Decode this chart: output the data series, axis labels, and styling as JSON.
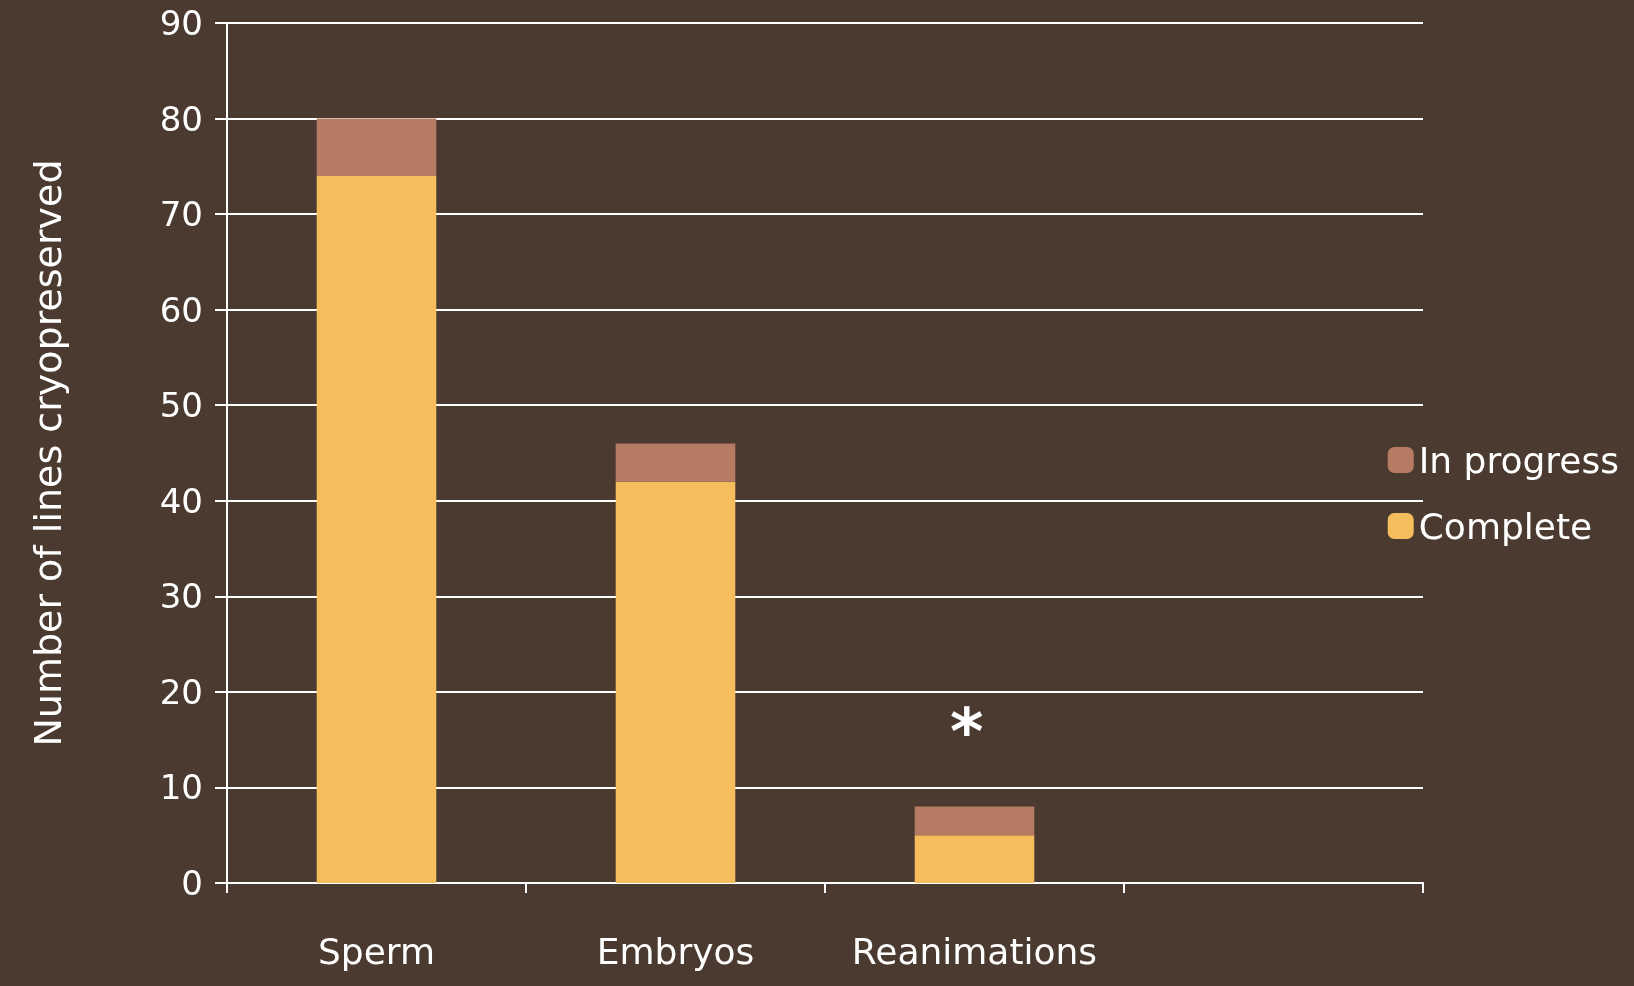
{
  "chart_data": {
    "type": "bar",
    "stacked": true,
    "ylabel": "Number of lines cryopreserved",
    "categories": [
      "Sperm",
      "Embryos",
      "Reanimations",
      null
    ],
    "series": [
      {
        "name": "Complete",
        "color": "#f5bd5c",
        "values": [
          74,
          42,
          5,
          null
        ]
      },
      {
        "name": "In progress",
        "color": "#b57b63",
        "values": [
          6,
          4,
          3,
          null
        ]
      }
    ],
    "ylim": [
      0,
      90
    ],
    "yticks": [
      0,
      10,
      20,
      30,
      40,
      50,
      60,
      70,
      80,
      90
    ],
    "grid": "y",
    "legend": "right",
    "annotations": [
      "*"
    ]
  }
}
